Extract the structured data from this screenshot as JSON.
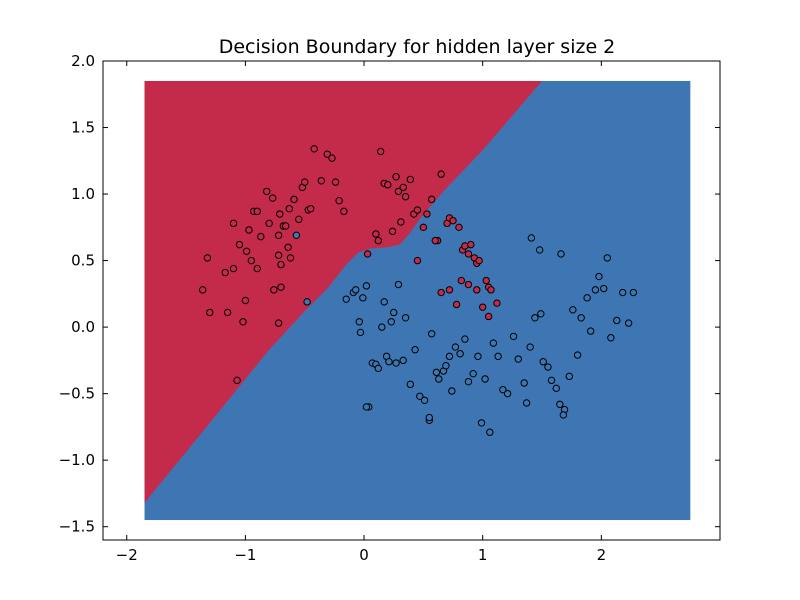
{
  "chart_data": {
    "type": "scatter",
    "title": "Decision Boundary for hidden layer size 2",
    "xlabel": "",
    "ylabel": "",
    "xlim": [
      -2.2,
      3.0
    ],
    "ylim": [
      -1.6,
      2.0
    ],
    "xticks": [
      -2,
      -1,
      0,
      1,
      2
    ],
    "yticks": [
      -1.5,
      -1.0,
      -0.5,
      0.0,
      0.5,
      1.0,
      1.5,
      2.0
    ],
    "xtick_labels": [
      "−2",
      "−1",
      "0",
      "1",
      "2"
    ],
    "ytick_labels": [
      "−1.5",
      "−1.0",
      "−0.5",
      "0.0",
      "0.5",
      "1.0",
      "1.5",
      "2.0"
    ],
    "grid": false,
    "decision_region": {
      "extent_x": [
        -1.85,
        2.75
      ],
      "extent_y": [
        -1.45,
        1.85
      ],
      "boundary": [
        [
          -1.85,
          -1.32
        ],
        [
          -1.3,
          -0.72
        ],
        [
          -0.8,
          -0.17
        ],
        [
          -0.5,
          0.12
        ],
        [
          -0.3,
          0.3
        ],
        [
          -0.15,
          0.47
        ],
        [
          -0.05,
          0.56
        ],
        [
          0.05,
          0.59
        ],
        [
          0.2,
          0.6
        ],
        [
          0.3,
          0.62
        ],
        [
          0.38,
          0.7
        ],
        [
          0.5,
          0.85
        ],
        [
          0.7,
          1.05
        ],
        [
          1.0,
          1.33
        ],
        [
          1.5,
          1.85
        ]
      ],
      "colors": {
        "class_0": "#c42a4a",
        "class_1": "#3d76b3"
      }
    },
    "series": [
      {
        "color": "#c42a4a",
        "x": [
          -1.36,
          -1.32,
          -1.3,
          -1.17,
          -1.15,
          -1.1,
          -1.1,
          -1.05,
          -1.02,
          -0.99,
          -0.97,
          -0.93,
          -0.9,
          -0.9,
          -0.87,
          -0.82,
          -0.8,
          -0.77,
          -0.76,
          -0.72,
          -0.72,
          -0.71,
          -0.7,
          -0.7,
          -0.68,
          -0.66,
          -0.63,
          -0.62,
          -0.59,
          -0.55,
          -0.52,
          -0.5,
          -0.47,
          -0.45,
          -0.42,
          -0.36,
          -0.31,
          -0.27,
          -0.24,
          -0.21,
          -0.17,
          -1.0,
          -0.95,
          -1.07,
          -0.72,
          -0.64,
          0.03,
          0.1,
          0.12,
          0.14,
          0.17,
          0.2,
          0.24,
          0.27,
          0.29,
          0.31,
          0.33,
          0.35,
          0.39,
          0.42,
          0.45,
          0.5,
          0.53,
          0.57,
          0.62,
          0.65,
          0.7,
          0.72,
          0.75,
          0.8,
          0.83,
          0.85,
          0.88,
          0.9,
          0.93,
          0.95,
          0.97,
          1.03,
          1.05,
          1.07,
          1.12,
          0.6,
          0.65,
          0.45,
          0.72,
          0.78,
          0.82,
          0.88,
          0.95,
          1.0,
          1.05
        ],
        "y": [
          0.28,
          0.52,
          0.11,
          0.41,
          0.11,
          0.78,
          0.44,
          0.62,
          0.04,
          0.57,
          0.73,
          0.87,
          0.44,
          0.87,
          0.68,
          1.02,
          0.78,
          0.97,
          0.28,
          0.54,
          0.69,
          0.85,
          0.3,
          0.47,
          0.76,
          0.76,
          0.89,
          0.52,
          0.96,
          0.81,
          1.05,
          1.09,
          0.88,
          0.89,
          1.34,
          1.1,
          1.3,
          1.27,
          1.09,
          0.95,
          0.87,
          0.2,
          0.5,
          -0.4,
          0.03,
          0.6,
          0.55,
          0.7,
          0.65,
          1.32,
          1.08,
          1.07,
          0.72,
          1.13,
          1.02,
          0.79,
          1.05,
          0.98,
          1.11,
          0.85,
          0.88,
          0.75,
          0.85,
          0.96,
          0.65,
          1.15,
          0.78,
          0.82,
          0.8,
          0.75,
          0.58,
          0.61,
          0.55,
          0.62,
          0.52,
          0.48,
          0.5,
          0.35,
          0.3,
          0.28,
          0.18,
          0.65,
          0.26,
          0.5,
          0.28,
          0.17,
          0.35,
          0.32,
          0.28,
          0.15,
          0.08
        ]
      },
      {
        "color": "#3d76b3",
        "x": [
          -0.57,
          -0.48,
          -0.15,
          -0.09,
          -0.07,
          -0.04,
          -0.03,
          -0.01,
          0.02,
          0.04,
          0.07,
          0.1,
          0.12,
          0.15,
          0.17,
          0.19,
          0.21,
          0.23,
          0.25,
          0.27,
          0.29,
          0.33,
          0.35,
          0.39,
          0.43,
          0.47,
          0.51,
          0.55,
          0.57,
          0.63,
          0.67,
          0.69,
          0.72,
          0.74,
          0.77,
          0.81,
          0.85,
          0.88,
          0.92,
          0.96,
          0.99,
          1.02,
          1.06,
          1.09,
          1.13,
          1.17,
          1.21,
          1.26,
          1.3,
          1.35,
          1.37,
          1.4,
          1.44,
          1.49,
          1.51,
          1.55,
          1.58,
          1.62,
          1.65,
          1.69,
          1.73,
          1.76,
          1.8,
          1.83,
          1.88,
          1.91,
          1.95,
          1.98,
          2.02,
          2.05,
          2.08,
          2.13,
          2.18,
          2.23,
          2.27,
          1.48,
          1.41,
          1.66,
          1.68,
          0.02,
          0.55,
          0.61
        ],
        "y": [
          0.69,
          0.19,
          0.21,
          0.26,
          0.28,
          0.04,
          -0.04,
          0.22,
          0.31,
          -0.6,
          -0.27,
          -0.28,
          -0.31,
          0.0,
          0.19,
          -0.22,
          -0.26,
          0.04,
          0.11,
          -0.27,
          0.32,
          -0.25,
          0.07,
          -0.43,
          -0.17,
          -0.52,
          -0.55,
          -0.7,
          -0.05,
          -0.39,
          -0.33,
          -0.29,
          -0.22,
          -0.48,
          -0.15,
          -0.2,
          -0.09,
          -0.41,
          -0.35,
          -0.22,
          -0.72,
          -0.39,
          -0.79,
          -0.12,
          -0.22,
          -0.47,
          -0.5,
          -0.07,
          -0.24,
          -0.42,
          -0.57,
          -0.15,
          0.07,
          0.1,
          -0.26,
          -0.3,
          -0.4,
          -0.46,
          -0.58,
          -0.62,
          -0.37,
          0.13,
          -0.21,
          0.07,
          0.22,
          -0.03,
          0.28,
          0.38,
          0.29,
          0.52,
          -0.08,
          0.05,
          0.26,
          0.03,
          0.26,
          0.58,
          0.67,
          0.55,
          -0.66,
          -0.6,
          -0.68,
          -0.34
        ]
      }
    ]
  }
}
